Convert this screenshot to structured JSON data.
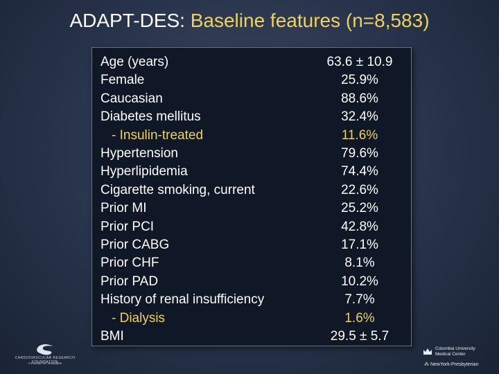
{
  "title": {
    "prefix": "ADAPT-DES:",
    "highlight": "Baseline features (n=8,583)"
  },
  "rows": [
    {
      "label": "Age (years)",
      "value": "63.6 ± 10.9",
      "sub": false,
      "highlight": false
    },
    {
      "label": "Female",
      "value": "25.9%",
      "sub": false,
      "highlight": false
    },
    {
      "label": "Caucasian",
      "value": "88.6%",
      "sub": false,
      "highlight": false
    },
    {
      "label": "Diabetes mellitus",
      "value": "32.4%",
      "sub": false,
      "highlight": false
    },
    {
      "label": "- Insulin-treated",
      "value": "11.6%",
      "sub": true,
      "highlight": true
    },
    {
      "label": "Hypertension",
      "value": "79.6%",
      "sub": false,
      "highlight": false
    },
    {
      "label": "Hyperlipidemia",
      "value": "74.4%",
      "sub": false,
      "highlight": false
    },
    {
      "label": "Cigarette smoking, current",
      "value": "22.6%",
      "sub": false,
      "highlight": false
    },
    {
      "label": "Prior MI",
      "value": "25.2%",
      "sub": false,
      "highlight": false
    },
    {
      "label": "Prior PCI",
      "value": "42.8%",
      "sub": false,
      "highlight": false
    },
    {
      "label": "Prior CABG",
      "value": "17.1%",
      "sub": false,
      "highlight": false
    },
    {
      "label": "Prior CHF",
      "value": "8.1%",
      "sub": false,
      "highlight": false
    },
    {
      "label": "Prior PAD",
      "value": "10.2%",
      "sub": false,
      "highlight": false
    },
    {
      "label": "History of renal insufficiency",
      "value": "7.7%",
      "sub": false,
      "highlight": false
    },
    {
      "label": "- Dialysis",
      "value": "1.6%",
      "sub": true,
      "highlight": true
    },
    {
      "label": "BMI",
      "value": "29.5 ± 5.7",
      "sub": false,
      "highlight": false
    }
  ],
  "logos": {
    "left_org": "CARDIOVASCULAR RESEARCH FOUNDATION",
    "left_tagline": "A Passion for Innovation",
    "right_org_line1": "Columbia University",
    "right_org_line2": "Medical Center",
    "right_org2": "NewYork-Presbyterian"
  },
  "colors": {
    "highlight": "#f0d060",
    "text": "#ffffff",
    "table_bg": "#101726",
    "slide_bg": "#2f3b52"
  }
}
